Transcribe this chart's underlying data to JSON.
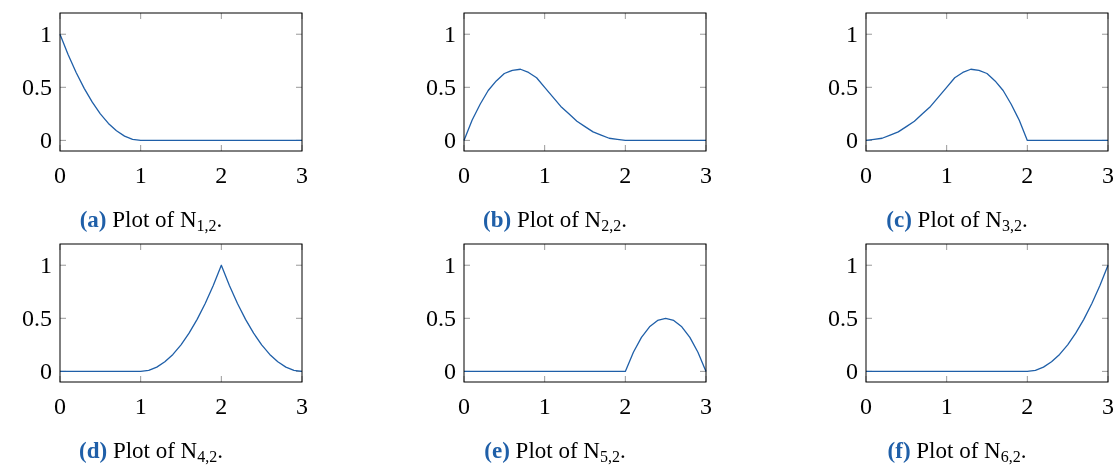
{
  "chart_data": [
    {
      "type": "line",
      "title": "(a) Plot of N$_{1,2}$.",
      "x": [
        0,
        0.1,
        0.2,
        0.3,
        0.4,
        0.5,
        0.6,
        0.7,
        0.8,
        0.9,
        1,
        2,
        3
      ],
      "series": [
        {
          "color": "#1f5fa8",
          "values": [
            1,
            0.81,
            0.64,
            0.49,
            0.36,
            0.25,
            0.16,
            0.09,
            0.04,
            0.01,
            0,
            0,
            0
          ]
        }
      ],
      "xlim": [
        0,
        3
      ],
      "ylim": [
        -0.1,
        1.2
      ],
      "xticks": [
        0,
        1,
        2,
        3
      ],
      "yticks": [
        0,
        0.5,
        1
      ]
    },
    {
      "type": "line",
      "title": "(b) Plot of N$_{2,2}$.",
      "x": [
        0,
        0.1,
        0.2,
        0.3,
        0.4,
        0.5,
        0.6,
        0.7,
        0.8,
        0.9,
        1,
        1.1,
        1.2,
        1.3,
        1.4,
        1.5,
        1.6,
        1.7,
        1.8,
        1.9,
        2,
        3
      ],
      "series": [
        {
          "color": "#1f5fa8",
          "values": [
            0,
            0.19,
            0.34,
            0.47,
            0.56,
            0.63,
            0.66,
            0.67,
            0.64,
            0.59,
            0.5,
            0.41,
            0.32,
            0.25,
            0.18,
            0.13,
            0.08,
            0.05,
            0.02,
            0.01,
            0,
            0
          ]
        }
      ],
      "xlim": [
        0,
        3
      ],
      "ylim": [
        -0.1,
        1.2
      ],
      "xticks": [
        0,
        1,
        2,
        3
      ],
      "yticks": [
        0,
        0.5,
        1
      ]
    },
    {
      "type": "line",
      "title": "(c) Plot of N$_{3,2}$.",
      "x": [
        0,
        0.1,
        0.2,
        0.3,
        0.4,
        0.5,
        0.6,
        0.7,
        0.8,
        0.9,
        1,
        1.1,
        1.2,
        1.3,
        1.4,
        1.5,
        1.6,
        1.7,
        1.8,
        1.9,
        2,
        3
      ],
      "series": [
        {
          "color": "#1f5fa8",
          "values": [
            0,
            0.01,
            0.02,
            0.05,
            0.08,
            0.13,
            0.18,
            0.25,
            0.32,
            0.41,
            0.5,
            0.59,
            0.64,
            0.67,
            0.66,
            0.63,
            0.56,
            0.47,
            0.34,
            0.19,
            0,
            0
          ]
        }
      ],
      "xlim": [
        0,
        3
      ],
      "ylim": [
        -0.1,
        1.2
      ],
      "xticks": [
        0,
        1,
        2,
        3
      ],
      "yticks": [
        0,
        0.5,
        1
      ]
    },
    {
      "type": "line",
      "title": "(d) Plot of N$_{4,2}$.",
      "x": [
        0,
        1,
        1.1,
        1.2,
        1.3,
        1.4,
        1.5,
        1.6,
        1.7,
        1.8,
        1.9,
        2,
        2.1,
        2.2,
        2.3,
        2.4,
        2.5,
        2.6,
        2.7,
        2.8,
        2.9,
        3
      ],
      "series": [
        {
          "color": "#1f5fa8",
          "values": [
            0,
            0,
            0.01,
            0.04,
            0.09,
            0.16,
            0.25,
            0.36,
            0.49,
            0.64,
            0.81,
            1,
            0.81,
            0.64,
            0.49,
            0.36,
            0.25,
            0.16,
            0.09,
            0.04,
            0.01,
            0
          ]
        }
      ],
      "xlim": [
        0,
        3
      ],
      "ylim": [
        -0.1,
        1.2
      ],
      "xticks": [
        0,
        1,
        2,
        3
      ],
      "yticks": [
        0,
        0.5,
        1
      ]
    },
    {
      "type": "line",
      "title": "(e) Plot of N$_{5,2}$.",
      "x": [
        0,
        2,
        2.1,
        2.2,
        2.3,
        2.4,
        2.5,
        2.6,
        2.7,
        2.8,
        2.9,
        3
      ],
      "series": [
        {
          "color": "#1f5fa8",
          "values": [
            0,
            0,
            0.18,
            0.32,
            0.42,
            0.48,
            0.5,
            0.48,
            0.42,
            0.32,
            0.18,
            0
          ]
        }
      ],
      "xlim": [
        0,
        3
      ],
      "ylim": [
        -0.1,
        1.2
      ],
      "xticks": [
        0,
        1,
        2,
        3
      ],
      "yticks": [
        0,
        0.5,
        1
      ]
    },
    {
      "type": "line",
      "title": "(f) Plot of N$_{6,2}$.",
      "x": [
        0,
        2,
        2.1,
        2.2,
        2.3,
        2.4,
        2.5,
        2.6,
        2.7,
        2.8,
        2.9,
        3
      ],
      "series": [
        {
          "color": "#1f5fa8",
          "values": [
            0,
            0,
            0.01,
            0.04,
            0.09,
            0.16,
            0.25,
            0.36,
            0.49,
            0.64,
            0.81,
            1
          ]
        }
      ],
      "xlim": [
        0,
        3
      ],
      "ylim": [
        -0.1,
        1.2
      ],
      "xticks": [
        0,
        1,
        2,
        3
      ],
      "yticks": [
        0,
        0.5,
        1
      ]
    }
  ]
}
